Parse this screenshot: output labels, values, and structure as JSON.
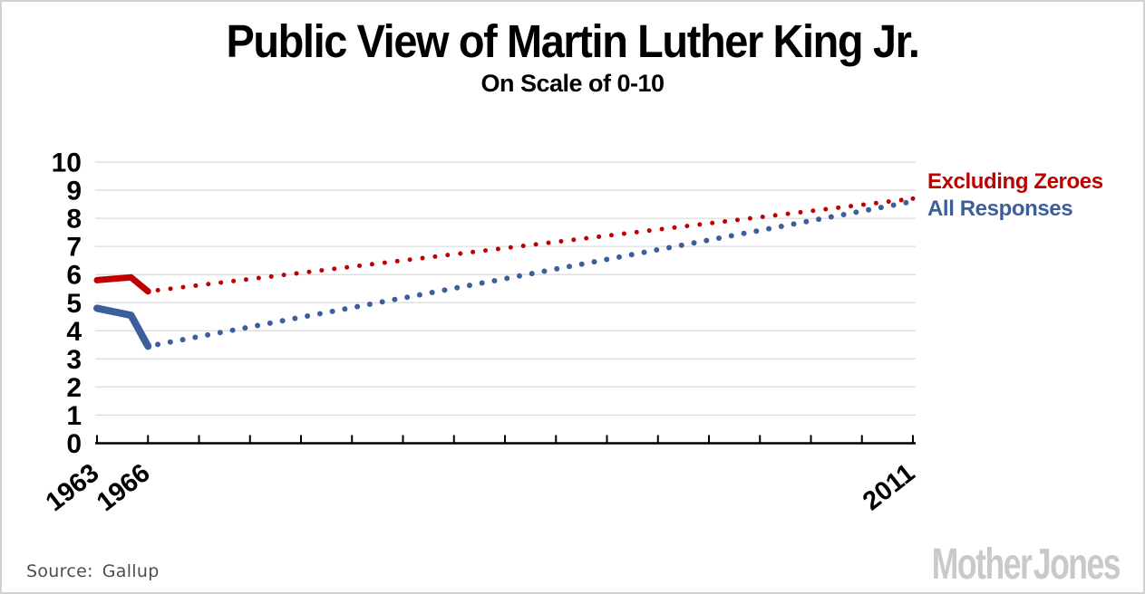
{
  "title": "Public View of Martin Luther King Jr.",
  "subtitle": "On Scale of 0-10",
  "legend": [
    {
      "label": "Excluding Zeroes",
      "color": "#c00000"
    },
    {
      "label": "All Responses",
      "color": "#3c5f9b"
    }
  ],
  "footer": {
    "source_label": "Source:",
    "source_value": "Gallup"
  },
  "branding": {
    "logo_text": "Mother Jones"
  },
  "chart_data": {
    "type": "line",
    "title": "Public View of Martin Luther King Jr.",
    "subtitle": "On Scale of 0-10",
    "xlabel": "",
    "ylabel": "",
    "ylim": [
      0,
      10
    ],
    "yticks": [
      0,
      1,
      2,
      3,
      4,
      5,
      6,
      7,
      8,
      9,
      10
    ],
    "xlim": [
      1963,
      2011
    ],
    "xticks": [
      1963,
      1966,
      1969,
      1972,
      1975,
      1978,
      1981,
      1984,
      1987,
      1990,
      1993,
      1996,
      1999,
      2002,
      2005,
      2008,
      2011
    ],
    "xtick_labels_shown": [
      "1963",
      "1966",
      "2011"
    ],
    "grid": "horizontal",
    "gridline_color": "#dcdcdc",
    "legend_position": "right",
    "series": [
      {
        "name": "Excluding Zeroes",
        "color": "#c00000",
        "style_solid_then_dotted": true,
        "solid_points": [
          [
            1963,
            5.8
          ],
          [
            1965,
            5.9
          ],
          [
            1966,
            5.4
          ]
        ],
        "dotted_points": [
          [
            1966,
            5.4
          ],
          [
            2011,
            8.7
          ]
        ]
      },
      {
        "name": "All Responses",
        "color": "#3c5f9b",
        "style_solid_then_dotted": true,
        "solid_points": [
          [
            1963,
            4.8
          ],
          [
            1965,
            4.55
          ],
          [
            1966,
            3.45
          ]
        ],
        "dotted_points": [
          [
            1966,
            3.45
          ],
          [
            2011,
            8.6
          ]
        ]
      }
    ]
  }
}
